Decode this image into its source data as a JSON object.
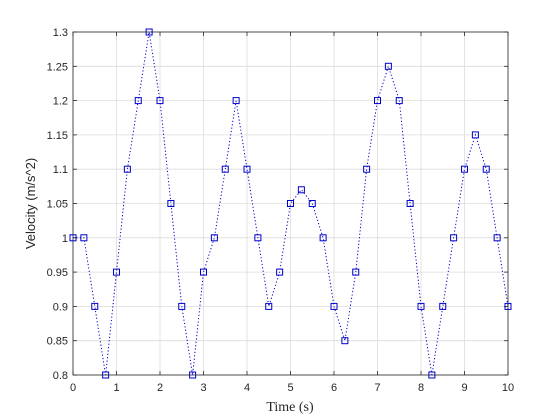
{
  "chart_data": {
    "type": "line",
    "title": "",
    "xlabel": "Time (s)",
    "ylabel": "Velocity (m/s^2)",
    "xlim": [
      0,
      10
    ],
    "ylim": [
      0.8,
      1.3
    ],
    "xticks": [
      0,
      1,
      2,
      3,
      4,
      5,
      6,
      7,
      8,
      9,
      10
    ],
    "yticks": [
      0.8,
      0.85,
      0.9,
      0.95,
      1,
      1.05,
      1.1,
      1.15,
      1.2,
      1.25,
      1.3
    ],
    "xtick_labels": [
      "0",
      "1",
      "2",
      "3",
      "4",
      "5",
      "6",
      "7",
      "8",
      "9",
      "10"
    ],
    "ytick_labels": [
      "0.8",
      "0.85",
      "0.9",
      "0.95",
      "1",
      "1.05",
      "1.1",
      "1.15",
      "1.2",
      "1.25",
      "1.3"
    ],
    "grid": true,
    "line_style": "dotted",
    "marker": "square",
    "color": "#0000cc",
    "series": [
      {
        "x": [
          0,
          0.25,
          0.5,
          0.75,
          1,
          1.25,
          1.5,
          1.75,
          2,
          2.25,
          2.5,
          2.75,
          3,
          3.25,
          3.5,
          3.75,
          4,
          4.25,
          4.5,
          4.75,
          5,
          5.25,
          5.5,
          5.75,
          6,
          6.25,
          6.5,
          6.75,
          7,
          7.25,
          7.5,
          7.75,
          8,
          8.25,
          8.5,
          8.75,
          9,
          9.25,
          9.5,
          9.75,
          10
        ],
        "y": [
          1.0,
          1.0,
          0.9,
          0.8,
          0.95,
          1.1,
          1.2,
          1.3,
          1.2,
          1.05,
          0.9,
          0.8,
          0.95,
          1.0,
          1.1,
          1.2,
          1.1,
          1.0,
          0.9,
          0.95,
          1.05,
          1.07,
          1.05,
          1.0,
          0.9,
          0.85,
          0.95,
          1.1,
          1.2,
          1.25,
          1.2,
          1.05,
          0.9,
          0.8,
          0.9,
          1.0,
          1.1,
          1.15,
          1.1,
          1.0,
          0.9
        ]
      }
    ]
  }
}
